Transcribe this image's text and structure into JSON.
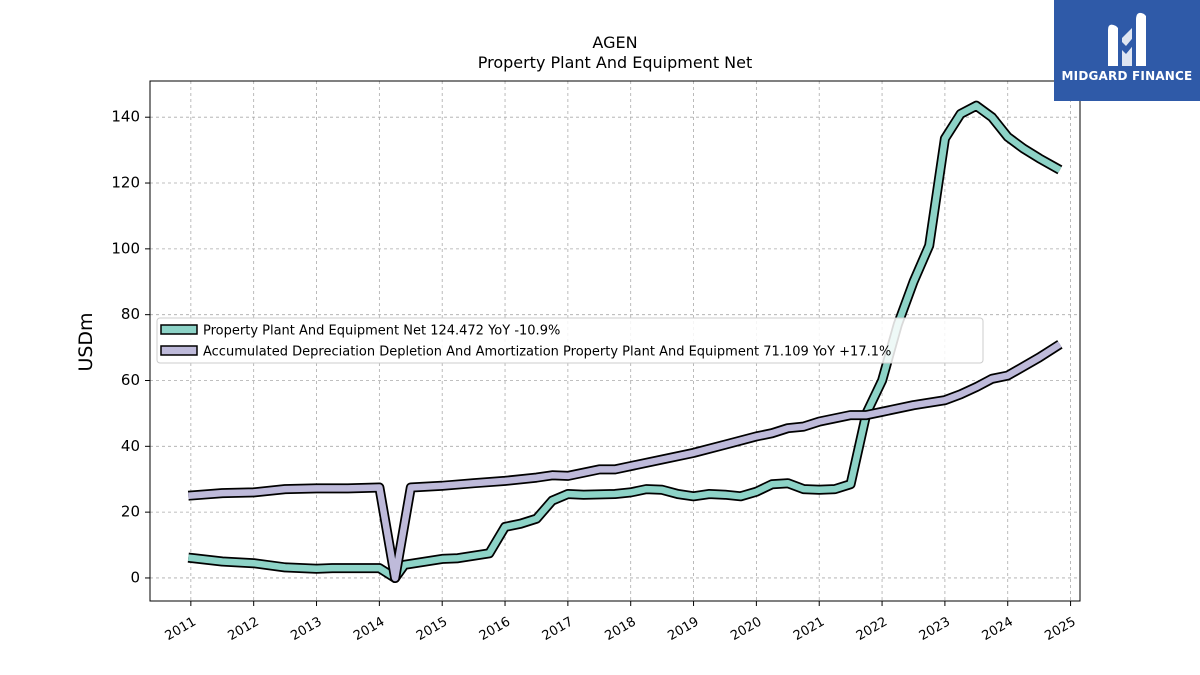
{
  "chart_data": {
    "type": "line",
    "title": "AGEN",
    "subtitle": "Property Plant And Equipment Net",
    "xlabel": "",
    "ylabel": "USDm",
    "xlim": [
      2010.35,
      2025.15
    ],
    "ylim": [
      -7,
      151
    ],
    "x_ticks": [
      "2011",
      "2012",
      "2013",
      "2014",
      "2015",
      "2016",
      "2017",
      "2018",
      "2019",
      "2020",
      "2021",
      "2022",
      "2023",
      "2024",
      "2025"
    ],
    "y_ticks": [
      0,
      20,
      40,
      60,
      80,
      100,
      120,
      140
    ],
    "grid": true,
    "legend_position": "center-left",
    "series": [
      {
        "name": "Property Plant And Equipment Net",
        "legend_label": "Property Plant And Equipment Net  124.472 YoY -10.9%",
        "color": "#8dd3c7",
        "points": [
          [
            2010.96,
            6.2
          ],
          [
            2011.5,
            5.0
          ],
          [
            2012.0,
            4.5
          ],
          [
            2012.5,
            3.2
          ],
          [
            2013.0,
            2.8
          ],
          [
            2013.25,
            3.0
          ],
          [
            2013.5,
            3.0
          ],
          [
            2014.0,
            3.0
          ],
          [
            2014.25,
            0.0
          ],
          [
            2014.4,
            4.0
          ],
          [
            2015.0,
            5.8
          ],
          [
            2015.25,
            6.0
          ],
          [
            2015.75,
            7.5
          ],
          [
            2016.0,
            15.5
          ],
          [
            2016.25,
            16.5
          ],
          [
            2016.5,
            18.0
          ],
          [
            2016.75,
            23.5
          ],
          [
            2017.0,
            25.5
          ],
          [
            2017.25,
            25.3
          ],
          [
            2017.75,
            25.5
          ],
          [
            2018.0,
            26.0
          ],
          [
            2018.25,
            27.0
          ],
          [
            2018.5,
            26.8
          ],
          [
            2018.75,
            25.5
          ],
          [
            2019.0,
            24.8
          ],
          [
            2019.25,
            25.5
          ],
          [
            2019.5,
            25.3
          ],
          [
            2019.75,
            24.8
          ],
          [
            2020.0,
            26.2
          ],
          [
            2020.25,
            28.5
          ],
          [
            2020.5,
            28.8
          ],
          [
            2020.75,
            27.0
          ],
          [
            2021.0,
            26.8
          ],
          [
            2021.25,
            27.0
          ],
          [
            2021.5,
            28.5
          ],
          [
            2021.75,
            50.0
          ],
          [
            2022.0,
            60.0
          ],
          [
            2022.25,
            77.0
          ],
          [
            2022.5,
            90.0
          ],
          [
            2022.75,
            101.0
          ],
          [
            2023.0,
            133.5
          ],
          [
            2023.25,
            141.0
          ],
          [
            2023.5,
            143.5
          ],
          [
            2023.75,
            140.0
          ],
          [
            2024.0,
            134.0
          ],
          [
            2024.25,
            130.5
          ],
          [
            2024.5,
            127.5
          ],
          [
            2024.83,
            124.0
          ]
        ]
      },
      {
        "name": "Accumulated Depreciation Depletion And Amortization Property Plant And Equipment",
        "legend_label": "Accumulated Depreciation Depletion And Amortization Property Plant And Equipment  71.109 YoY +17.1%",
        "color": "#bebada",
        "points": [
          [
            2010.96,
            25.0
          ],
          [
            2011.5,
            25.8
          ],
          [
            2012.0,
            26.0
          ],
          [
            2012.5,
            27.0
          ],
          [
            2013.0,
            27.2
          ],
          [
            2013.5,
            27.2
          ],
          [
            2014.0,
            27.5
          ],
          [
            2014.25,
            0.0
          ],
          [
            2014.5,
            27.5
          ],
          [
            2015.0,
            28.0
          ],
          [
            2015.5,
            28.8
          ],
          [
            2016.0,
            29.5
          ],
          [
            2016.5,
            30.5
          ],
          [
            2016.75,
            31.2
          ],
          [
            2017.0,
            31.0
          ],
          [
            2017.5,
            33.0
          ],
          [
            2017.75,
            33.0
          ],
          [
            2018.0,
            34.0
          ],
          [
            2018.5,
            36.0
          ],
          [
            2019.0,
            38.0
          ],
          [
            2019.5,
            40.5
          ],
          [
            2020.0,
            43.0
          ],
          [
            2020.25,
            44.0
          ],
          [
            2020.5,
            45.5
          ],
          [
            2020.75,
            46.0
          ],
          [
            2021.0,
            47.5
          ],
          [
            2021.5,
            49.5
          ],
          [
            2021.75,
            49.5
          ],
          [
            2022.0,
            50.5
          ],
          [
            2022.5,
            52.5
          ],
          [
            2023.0,
            54.0
          ],
          [
            2023.25,
            55.8
          ],
          [
            2023.5,
            58.0
          ],
          [
            2023.75,
            60.5
          ],
          [
            2024.0,
            61.5
          ],
          [
            2024.5,
            67.0
          ],
          [
            2024.83,
            71.0
          ]
        ]
      }
    ]
  },
  "brand": {
    "name": "MIDGARD FINANCE",
    "color": "#2f5aa8"
  }
}
